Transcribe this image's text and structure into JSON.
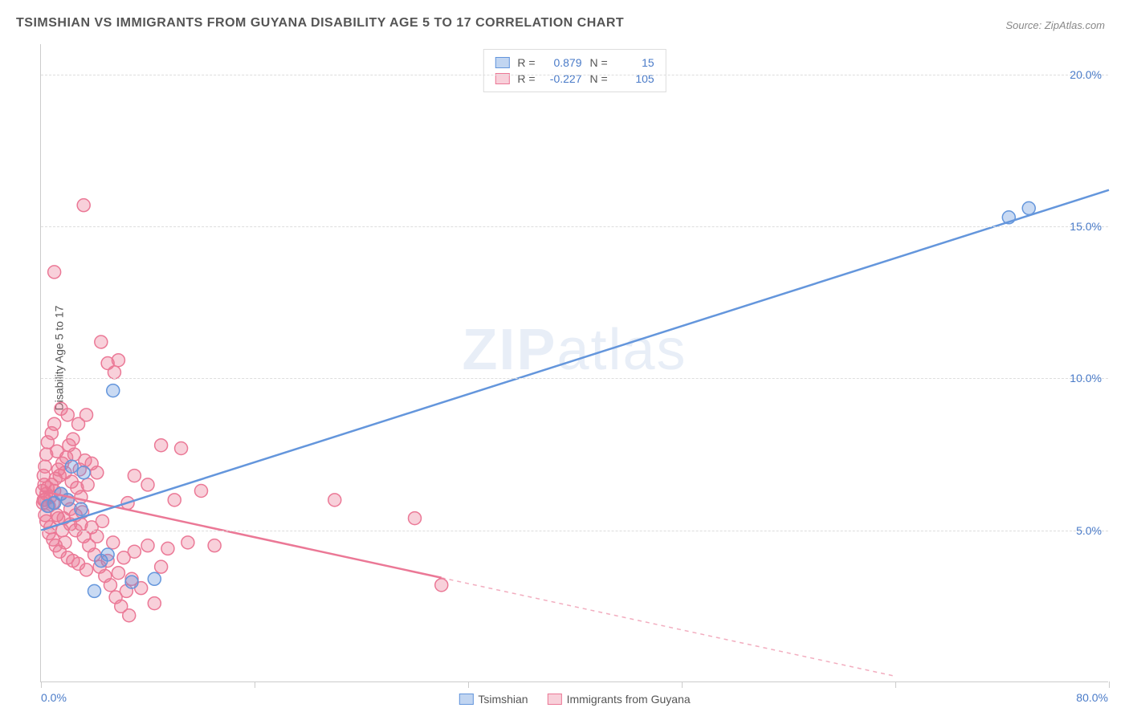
{
  "title": "TSIMSHIAN VS IMMIGRANTS FROM GUYANA DISABILITY AGE 5 TO 17 CORRELATION CHART",
  "source": "Source: ZipAtlas.com",
  "y_axis_label": "Disability Age 5 to 17",
  "watermark_a": "ZIP",
  "watermark_b": "atlas",
  "chart": {
    "type": "scatter-correlation",
    "background_color": "#ffffff",
    "grid_color": "#dddddd",
    "axis_color": "#cccccc",
    "tick_label_color": "#4a7bc8",
    "tick_fontsize": 14,
    "title_fontsize": 16,
    "xlim": [
      0,
      80
    ],
    "ylim": [
      0,
      21
    ],
    "x_ticks": [
      0,
      16,
      32,
      48,
      64,
      80
    ],
    "x_tick_labels_shown": {
      "0": "0.0%",
      "80": "80.0%"
    },
    "y_ticks": [
      5,
      10,
      15,
      20
    ],
    "y_tick_labels": [
      "5.0%",
      "10.0%",
      "15.0%",
      "20.0%"
    ],
    "series": [
      {
        "name": "Tsimshian",
        "color": "#6496dc",
        "fill": "rgba(100,150,220,0.35)",
        "marker_radius": 8,
        "R": "0.879",
        "N": "15",
        "trend": {
          "x1": 0,
          "y1": 5.0,
          "x2": 80,
          "y2": 16.2,
          "solid_until_x": 80,
          "dash": false
        },
        "points": [
          [
            0.5,
            5.8
          ],
          [
            1.0,
            5.9
          ],
          [
            1.5,
            6.2
          ],
          [
            2.0,
            6.0
          ],
          [
            2.3,
            7.1
          ],
          [
            3.0,
            5.7
          ],
          [
            3.2,
            6.9
          ],
          [
            4.0,
            3.0
          ],
          [
            4.5,
            4.0
          ],
          [
            5.0,
            4.2
          ],
          [
            6.8,
            3.3
          ],
          [
            8.5,
            3.4
          ],
          [
            5.4,
            9.6
          ],
          [
            72.5,
            15.3
          ],
          [
            74.0,
            15.6
          ]
        ]
      },
      {
        "name": "Immigrants from Guyana",
        "color": "#eb7896",
        "fill": "rgba(235,120,150,0.35)",
        "marker_radius": 8,
        "R": "-0.227",
        "N": "105",
        "trend": {
          "x1": 0,
          "y1": 6.3,
          "x2": 64,
          "y2": 0.2,
          "solid_until_x": 30,
          "dash": true
        },
        "points": [
          [
            0.3,
            6.0
          ],
          [
            0.4,
            6.2
          ],
          [
            0.5,
            6.4
          ],
          [
            0.6,
            5.8
          ],
          [
            0.7,
            6.1
          ],
          [
            0.8,
            6.5
          ],
          [
            0.9,
            5.9
          ],
          [
            1.0,
            6.3
          ],
          [
            1.1,
            6.7
          ],
          [
            1.2,
            5.5
          ],
          [
            1.3,
            7.0
          ],
          [
            1.4,
            6.8
          ],
          [
            1.5,
            6.2
          ],
          [
            1.6,
            7.2
          ],
          [
            1.7,
            5.4
          ],
          [
            1.8,
            6.9
          ],
          [
            1.9,
            7.4
          ],
          [
            2.0,
            6.0
          ],
          [
            2.1,
            7.8
          ],
          [
            2.2,
            5.2
          ],
          [
            2.3,
            6.6
          ],
          [
            2.4,
            8.0
          ],
          [
            2.5,
            7.5
          ],
          [
            2.6,
            5.0
          ],
          [
            2.7,
            6.4
          ],
          [
            2.8,
            8.5
          ],
          [
            2.9,
            7.0
          ],
          [
            3.0,
            6.1
          ],
          [
            3.1,
            5.6
          ],
          [
            3.2,
            4.8
          ],
          [
            3.3,
            7.3
          ],
          [
            3.4,
            8.8
          ],
          [
            3.5,
            6.5
          ],
          [
            1.0,
            13.5
          ],
          [
            3.2,
            15.7
          ],
          [
            5.0,
            10.5
          ],
          [
            5.5,
            10.2
          ],
          [
            4.5,
            11.2
          ],
          [
            5.8,
            10.6
          ],
          [
            3.6,
            4.5
          ],
          [
            3.8,
            5.1
          ],
          [
            4.0,
            4.2
          ],
          [
            4.2,
            4.8
          ],
          [
            4.4,
            3.8
          ],
          [
            4.6,
            5.3
          ],
          [
            4.8,
            3.5
          ],
          [
            5.0,
            4.0
          ],
          [
            5.2,
            3.2
          ],
          [
            5.4,
            4.6
          ],
          [
            5.6,
            2.8
          ],
          [
            5.8,
            3.6
          ],
          [
            6.0,
            2.5
          ],
          [
            6.2,
            4.1
          ],
          [
            6.4,
            3.0
          ],
          [
            6.6,
            2.2
          ],
          [
            6.8,
            3.4
          ],
          [
            7.0,
            4.3
          ],
          [
            7.5,
            3.1
          ],
          [
            8.0,
            4.5
          ],
          [
            8.5,
            2.6
          ],
          [
            9.0,
            3.8
          ],
          [
            9.5,
            4.4
          ],
          [
            10.0,
            6.0
          ],
          [
            10.5,
            7.7
          ],
          [
            9.0,
            7.8
          ],
          [
            11.0,
            4.6
          ],
          [
            12.0,
            6.3
          ],
          [
            13.0,
            4.5
          ],
          [
            8.0,
            6.5
          ],
          [
            7.0,
            6.8
          ],
          [
            6.5,
            5.9
          ],
          [
            1.0,
            8.5
          ],
          [
            1.5,
            9.0
          ],
          [
            0.8,
            8.2
          ],
          [
            1.2,
            7.6
          ],
          [
            2.0,
            8.8
          ],
          [
            0.5,
            7.9
          ],
          [
            0.3,
            5.5
          ],
          [
            0.4,
            5.3
          ],
          [
            0.2,
            6.0
          ],
          [
            0.6,
            4.9
          ],
          [
            0.7,
            5.1
          ],
          [
            0.9,
            4.7
          ],
          [
            1.1,
            4.5
          ],
          [
            1.3,
            5.4
          ],
          [
            1.4,
            4.3
          ],
          [
            1.6,
            5.0
          ],
          [
            1.8,
            4.6
          ],
          [
            2.0,
            4.1
          ],
          [
            2.2,
            5.7
          ],
          [
            2.4,
            4.0
          ],
          [
            2.6,
            5.5
          ],
          [
            2.8,
            3.9
          ],
          [
            3.0,
            5.2
          ],
          [
            3.4,
            3.7
          ],
          [
            3.8,
            7.2
          ],
          [
            4.2,
            6.9
          ],
          [
            22.0,
            6.0
          ],
          [
            28.0,
            5.4
          ],
          [
            30.0,
            3.2
          ],
          [
            0.2,
            6.8
          ],
          [
            0.3,
            7.1
          ],
          [
            0.4,
            7.5
          ],
          [
            0.1,
            6.3
          ],
          [
            0.15,
            5.9
          ],
          [
            0.25,
            6.5
          ]
        ]
      }
    ]
  },
  "stats_legend": {
    "r_label": "R =",
    "n_label": "N ="
  },
  "bottom_legend": {
    "series1": "Tsimshian",
    "series2": "Immigrants from Guyana"
  }
}
